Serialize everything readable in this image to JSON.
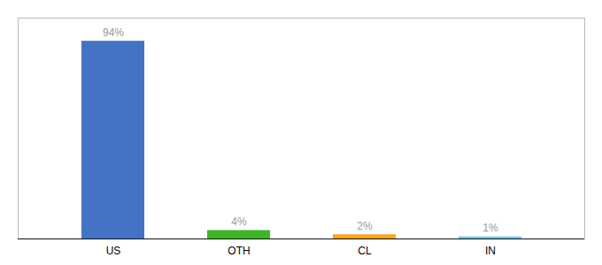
{
  "chart_data": {
    "type": "bar",
    "categories": [
      "US",
      "OTH",
      "CL",
      "IN"
    ],
    "values": [
      94,
      4,
      2,
      1
    ],
    "value_labels": [
      "94%",
      "4%",
      "2%",
      "1%"
    ],
    "colors": [
      "#4472c4",
      "#3cb528",
      "#f5a623",
      "#74c7ec"
    ],
    "ylim": [
      0,
      105
    ],
    "data_labels": true,
    "tick_labels": "x",
    "grid": false
  }
}
